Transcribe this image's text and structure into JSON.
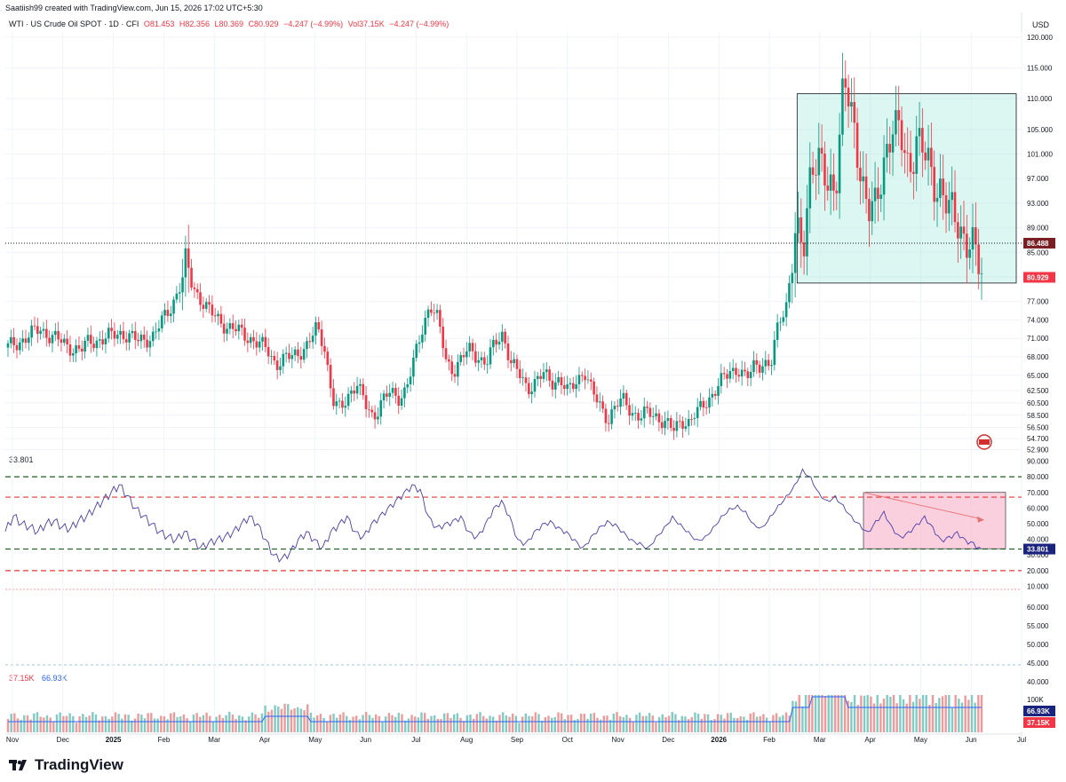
{
  "header": {
    "created_line": "Saatiish99 created with TradingView.com, Jun 15, 2026 17:02 UTC+5:30"
  },
  "legend": {
    "symbol": "WTI · US Crude Oil SPOT · 1D · CFI",
    "open": "O81.453",
    "high": "H82.356",
    "low": "L80.369",
    "close": "C80.929",
    "change": "−4.247 (−4.99%)",
    "volume": "Vol37.15K",
    "vol_change": "−4.247 (−4.99%)"
  },
  "currency": "USD",
  "brand": "TradingView",
  "colors": {
    "up": "#089981",
    "down": "#f23645",
    "rsi_line": "#4a3ea8",
    "green_dash": "#1b5e20",
    "red_dash": "#e53935",
    "box_teal": "#b2ebe0",
    "box_pink": "#f8bbd0",
    "vol_ma": "#2962ff"
  },
  "chart_data": [
    {
      "type": "candlestick",
      "name": "price",
      "x_labels": [
        "Nov",
        "Dec",
        "2025",
        "Feb",
        "Mar",
        "Apr",
        "May",
        "Jun",
        "Jul",
        "Aug",
        "Sep",
        "Oct",
        "Nov",
        "Dec",
        "2026",
        "Feb",
        "Mar",
        "Apr",
        "May",
        "Jun",
        "Jul"
      ],
      "y_ticks": [
        "120.000",
        "115.000",
        "110.000",
        "105.000",
        "101.000",
        "97.000",
        "93.000",
        "89.000",
        "85.000",
        "81.000",
        "77.000",
        "74.000",
        "71.000",
        "68.000",
        "65.000",
        "62.500",
        "60.500",
        "58.500",
        "56.500",
        "54.700",
        "52.900"
      ],
      "y_tick_values": [
        120,
        115,
        110,
        105,
        101,
        97,
        93,
        89,
        85,
        81,
        77,
        74,
        71,
        68,
        65,
        62.5,
        60.5,
        58.5,
        56.5,
        54.7,
        52.9
      ],
      "close_path": [
        [
          0,
          69.5
        ],
        [
          4,
          72.5
        ],
        [
          7,
          70
        ],
        [
          9,
          69
        ],
        [
          10,
          70.5
        ],
        [
          12,
          71
        ],
        [
          14,
          72
        ],
        [
          16,
          70.5
        ],
        [
          18,
          71.5
        ],
        [
          20,
          76
        ],
        [
          21,
          79
        ],
        [
          22,
          81.5
        ],
        [
          23,
          79
        ],
        [
          25,
          75
        ],
        [
          27,
          73
        ],
        [
          30,
          71
        ],
        [
          32,
          69
        ],
        [
          33,
          67
        ],
        [
          35,
          68
        ],
        [
          37,
          70
        ],
        [
          38,
          72.5
        ],
        [
          39,
          70
        ],
        [
          40,
          61
        ],
        [
          41,
          59
        ],
        [
          42,
          62
        ],
        [
          43,
          64
        ],
        [
          44,
          60
        ],
        [
          45,
          58
        ],
        [
          46,
          61
        ],
        [
          47,
          62
        ],
        [
          48,
          61
        ],
        [
          49,
          63
        ],
        [
          50,
          67
        ],
        [
          51,
          72
        ],
        [
          52,
          77
        ],
        [
          53,
          74
        ],
        [
          54,
          67
        ],
        [
          55,
          66
        ],
        [
          56,
          68
        ],
        [
          57,
          69
        ],
        [
          58,
          68
        ],
        [
          59,
          67
        ],
        [
          60,
          70
        ],
        [
          61,
          72
        ],
        [
          62,
          67
        ],
        [
          63,
          65
        ],
        [
          64,
          63
        ],
        [
          65,
          64
        ],
        [
          66,
          65
        ],
        [
          67,
          64
        ],
        [
          68,
          64.5
        ],
        [
          69,
          62
        ],
        [
          70,
          64
        ],
        [
          71,
          66
        ],
        [
          72,
          62
        ],
        [
          73,
          60
        ],
        [
          74,
          58
        ],
        [
          75,
          60
        ],
        [
          76,
          61
        ],
        [
          77,
          59
        ],
        [
          78,
          58
        ],
        [
          79,
          59
        ],
        [
          80,
          58.5
        ],
        [
          81,
          57
        ],
        [
          82,
          56
        ],
        [
          83,
          58
        ],
        [
          84,
          57
        ],
        [
          85,
          59
        ],
        [
          86,
          61
        ],
        [
          87,
          62
        ],
        [
          88,
          64
        ],
        [
          89,
          66
        ],
        [
          90,
          66
        ],
        [
          91,
          64
        ],
        [
          92,
          67
        ],
        [
          93,
          67
        ],
        [
          94,
          66
        ],
        [
          95,
          74
        ],
        [
          96,
          77
        ],
        [
          97,
          87
        ],
        [
          98,
          85
        ],
        [
          99,
          101
        ],
        [
          100,
          99
        ],
        [
          101,
          95
        ],
        [
          102,
          97
        ],
        [
          103,
          113
        ],
        [
          104,
          106
        ],
        [
          105,
          100
        ],
        [
          106,
          92
        ],
        [
          107,
          91
        ],
        [
          108,
          101
        ],
        [
          109,
          106
        ],
        [
          110,
          103
        ],
        [
          111,
          99
        ],
        [
          112,
          104
        ],
        [
          113,
          100
        ],
        [
          114,
          97
        ],
        [
          115,
          96
        ],
        [
          116,
          91
        ],
        [
          117,
          90
        ],
        [
          118,
          88
        ],
        [
          119,
          85
        ],
        [
          120,
          81
        ]
      ],
      "reference_lines": [
        {
          "label": "86.488",
          "value": 86.488,
          "style": "dotted"
        },
        {
          "label": "80.929",
          "value": 80.929,
          "style": "current-price"
        }
      ],
      "annotations": [
        {
          "type": "rectangle",
          "y_range": [
            80.0,
            110.8
          ],
          "color": "teal"
        }
      ]
    },
    {
      "type": "line",
      "name": "rsi",
      "label": "33.801",
      "y_ticks": [
        "90.000",
        "80.000",
        "70.000",
        "60.000",
        "50.000",
        "40.000",
        "30.000",
        "20.000",
        "10.000"
      ],
      "y_tick_values": [
        90,
        80,
        70,
        60,
        50,
        40,
        30,
        20,
        10
      ],
      "levels": [
        {
          "value": 80,
          "color": "green"
        },
        {
          "value": 67,
          "color": "red"
        },
        {
          "value": 33.8,
          "color": "green"
        },
        {
          "value": 20,
          "color": "red"
        }
      ],
      "values": [
        45,
        55,
        50,
        48,
        45,
        50,
        52,
        48,
        47,
        52,
        55,
        60,
        65,
        70,
        75,
        68,
        60,
        55,
        50,
        45,
        42,
        40,
        45,
        40,
        35,
        38,
        40,
        42,
        45,
        50,
        55,
        50,
        40,
        30,
        28,
        32,
        40,
        45,
        40,
        35,
        45,
        50,
        55,
        45,
        42,
        50,
        55,
        60,
        65,
        70,
        75,
        72,
        55,
        48,
        50,
        52,
        55,
        45,
        42,
        50,
        60,
        65,
        55,
        40,
        38,
        45,
        50,
        52,
        48,
        45,
        40,
        35,
        42,
        48,
        52,
        50,
        45,
        40,
        38,
        35,
        42,
        48,
        55,
        50,
        45,
        40,
        42,
        48,
        55,
        60,
        62,
        58,
        50,
        48,
        55,
        62,
        68,
        75,
        85,
        80,
        70,
        65,
        68,
        62,
        55,
        50,
        45,
        52,
        58,
        48,
        42,
        45,
        50,
        55,
        48,
        40,
        42,
        45,
        40,
        38,
        33.8
      ],
      "annotations": [
        {
          "type": "rectangle",
          "y_range": [
            34,
            70
          ],
          "color": "pink"
        },
        {
          "type": "arrow",
          "from": 70,
          "to": 53
        }
      ]
    },
    {
      "type": "bar",
      "name": "volume",
      "labels": [
        "37.15K",
        "66.93K"
      ],
      "y_ticks": [
        "100K"
      ],
      "ma_label": "66.93K",
      "last_label": "37.15K"
    }
  ]
}
